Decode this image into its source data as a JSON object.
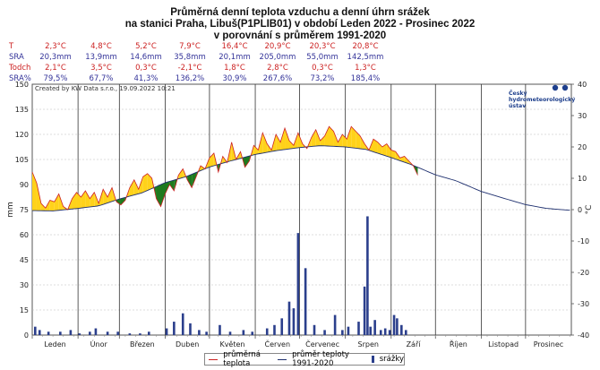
{
  "title": {
    "line1": "Průměrná denní teplota vzduchu a denní úhrn srážek",
    "line2": "na stanici Praha, Libuš(P1PLIB01) v období Leden 2022 - Prosinec 2022",
    "line3": "v porovnání s průměrem 1991-2020"
  },
  "stats": {
    "row_labels": [
      "T",
      "SRA",
      "Todch",
      "SRA%"
    ],
    "row_colors": [
      "#cc2222",
      "#333399",
      "#cc2222",
      "#333399"
    ],
    "rows": [
      [
        "2,3°C",
        "4,8°C",
        "5,2°C",
        "7,9°C",
        "16,4°C",
        "20,9°C",
        "20,3°C",
        "20,8°C"
      ],
      [
        "20,3mm",
        "13,9mm",
        "14,6mm",
        "35,8mm",
        "20,1mm",
        "205,0mm",
        "55,0mm",
        "142,5mm"
      ],
      [
        "2,1°C",
        "3,5°C",
        "0,3°C",
        "-2,1°C",
        "1,8°C",
        "2,8°C",
        "0,3°C",
        "1,3°C"
      ],
      [
        "79,5%",
        "67,7%",
        "41,3%",
        "136,2%",
        "30,9%",
        "267,6%",
        "73,2%",
        "185,4%"
      ]
    ]
  },
  "credit": "Created by KW Data s.r.o., 19.09.2022 10:21",
  "logo": {
    "line1": "Český",
    "line2": "hydrometeorologický",
    "line3": "ústav"
  },
  "legend": {
    "temp": "průměrná teplota",
    "norm": "průměr teploty 1991-2020",
    "precip": "srážky"
  },
  "colors": {
    "above": "#ffd21a",
    "below": "#1e7a1e",
    "temp_line": "#cc2222",
    "norm_line": "#1e2f6e",
    "bars": "#2b3f8c"
  },
  "chart_data": {
    "type": "line",
    "months": [
      "Leden",
      "Únor",
      "Březen",
      "Duben",
      "Květen",
      "Červen",
      "Červenec",
      "Srpen",
      "Září",
      "Říjen",
      "Listopad",
      "Prosinec"
    ],
    "y_left": {
      "label": "mm",
      "min": 0,
      "max": 150,
      "ticks": [
        0,
        15,
        30,
        45,
        60,
        75,
        90,
        105,
        120,
        135,
        150
      ]
    },
    "y_right": {
      "label": "°C",
      "min": -40,
      "max": 40,
      "ticks": [
        -40,
        -30,
        -20,
        -10,
        0,
        10,
        20,
        30,
        40
      ]
    },
    "norm_temp": {
      "doy": [
        1,
        15,
        32,
        46,
        60,
        75,
        91,
        105,
        121,
        135,
        152,
        166,
        182,
        196,
        213,
        227,
        244,
        258,
        274,
        288,
        305,
        319,
        335,
        349,
        365
      ],
      "values": [
        -0.3,
        -0.4,
        0.4,
        1.2,
        3.4,
        5.3,
        8.6,
        10.5,
        13.6,
        15.5,
        17.6,
        18.8,
        19.8,
        20.4,
        20.0,
        19.2,
        16.6,
        14.3,
        11.1,
        9.2,
        5.8,
        3.8,
        1.6,
        0.4,
        -0.2
      ]
    },
    "temp": {
      "doy": [
        1,
        4,
        7,
        10,
        13,
        16,
        19,
        22,
        25,
        28,
        31,
        34,
        37,
        40,
        43,
        46,
        49,
        52,
        55,
        58,
        61,
        64,
        67,
        70,
        73,
        76,
        79,
        82,
        85,
        88,
        91,
        94,
        97,
        100,
        103,
        106,
        109,
        112,
        115,
        118,
        121,
        124,
        127,
        130,
        133,
        136,
        139,
        142,
        145,
        148,
        151,
        154,
        157,
        160,
        163,
        166,
        169,
        172,
        175,
        178,
        181,
        184,
        187,
        190,
        193,
        196,
        199,
        202,
        205,
        208,
        211,
        214,
        217,
        220,
        223,
        226,
        229,
        232,
        235,
        238,
        241,
        244,
        247,
        250,
        253,
        256,
        259,
        262
      ],
      "values": [
        12.0,
        8.5,
        2.0,
        0.5,
        3.0,
        2.5,
        5.0,
        1.0,
        0.0,
        3.5,
        5.5,
        4.0,
        6.0,
        3.5,
        5.5,
        2.0,
        6.5,
        4.0,
        7.0,
        2.5,
        1.5,
        3.0,
        7.0,
        9.5,
        6.5,
        10.5,
        11.5,
        10.0,
        3.5,
        1.0,
        5.0,
        8.0,
        6.0,
        11.0,
        13.0,
        9.5,
        7.0,
        10.5,
        14.0,
        13.0,
        16.5,
        18.0,
        12.0,
        17.0,
        15.0,
        21.5,
        16.0,
        18.5,
        13.5,
        15.5,
        20.5,
        19.0,
        24.5,
        21.0,
        19.0,
        24.0,
        21.5,
        26.0,
        22.0,
        20.5,
        24.5,
        21.0,
        19.5,
        23.0,
        25.5,
        22.0,
        23.5,
        26.5,
        25.0,
        21.5,
        24.0,
        22.5,
        26.5,
        25.0,
        23.5,
        21.0,
        19.0,
        22.5,
        21.5,
        20.0,
        21.0,
        19.0,
        18.5,
        16.5,
        17.0,
        15.5,
        14.0,
        11.0
      ]
    },
    "precip": {
      "doy": [
        3,
        6,
        12,
        20,
        27,
        33,
        40,
        44,
        52,
        59,
        67,
        74,
        80,
        92,
        97,
        103,
        108,
        114,
        119,
        128,
        135,
        144,
        150,
        160,
        165,
        170,
        175,
        178,
        181,
        186,
        192,
        199,
        206,
        211,
        215,
        222,
        226,
        228,
        230,
        233,
        237,
        240,
        243,
        246,
        248,
        251,
        254
      ],
      "values": [
        5,
        3,
        2,
        2,
        3,
        1,
        2,
        4,
        2,
        2,
        1,
        1,
        2,
        4,
        8,
        13,
        7,
        3,
        2,
        6,
        2,
        3,
        2,
        4,
        6,
        10,
        20,
        16,
        61,
        40,
        6,
        3,
        12,
        3,
        5,
        8,
        29,
        71,
        5,
        9,
        3,
        4,
        3,
        12,
        10,
        6,
        3
      ]
    }
  }
}
